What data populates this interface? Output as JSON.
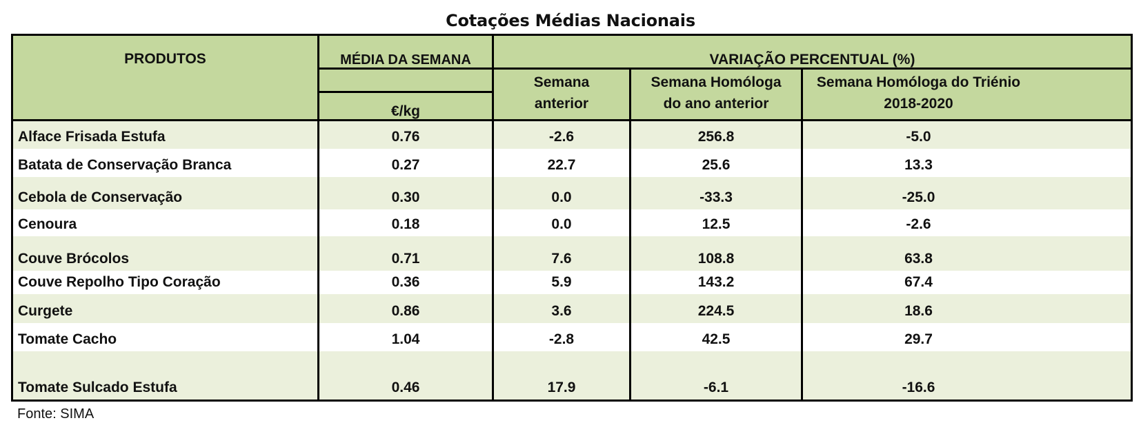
{
  "title": "Cotações Médias Nacionais",
  "header": {
    "produtos": "PRODUTOS",
    "media": "MÉDIA DA SEMANA",
    "unit": "€/kg",
    "variacao": "VARIAÇÃO PERCENTUAL (%)",
    "semana_anterior": [
      "Semana",
      "anterior"
    ],
    "homologa_ano": [
      "Semana Homóloga",
      "do ano anterior"
    ],
    "homologa_trienio": [
      "Semana Homóloga do Triénio",
      "2018-2020"
    ]
  },
  "rows": [
    {
      "produto": "Alface Frisada Estufa",
      "media": "0.76",
      "sem_ant": "-2.6",
      "hom_ano": "256.8",
      "hom_tri": "-5.0"
    },
    {
      "produto": "Batata de Conservação Branca",
      "media": "0.27",
      "sem_ant": "22.7",
      "hom_ano": "25.6",
      "hom_tri": "13.3"
    },
    {
      "produto": "Cebola de Conservação",
      "media": "0.30",
      "sem_ant": "0.0",
      "hom_ano": "-33.3",
      "hom_tri": "-25.0"
    },
    {
      "produto": "Cenoura",
      "media": "0.18",
      "sem_ant": "0.0",
      "hom_ano": "12.5",
      "hom_tri": "-2.6"
    },
    {
      "produto": "Couve Brócolos",
      "media": "0.71",
      "sem_ant": "7.6",
      "hom_ano": "108.8",
      "hom_tri": "63.8"
    },
    {
      "produto": "Couve Repolho Tipo Coração",
      "media": "0.36",
      "sem_ant": "5.9",
      "hom_ano": "143.2",
      "hom_tri": "67.4"
    },
    {
      "produto": "Curgete",
      "media": "0.86",
      "sem_ant": "3.6",
      "hom_ano": "224.5",
      "hom_tri": "18.6"
    },
    {
      "produto": "Tomate Cacho",
      "media": "1.04",
      "sem_ant": "-2.8",
      "hom_ano": "42.5",
      "hom_tri": "29.7"
    },
    {
      "produto": "Tomate Sulcado Estufa",
      "media": "0.46",
      "sem_ant": "17.9",
      "hom_ano": "-6.1",
      "hom_tri": "-16.6"
    }
  ],
  "source": "Fonte: SIMA",
  "colors": {
    "header_bg": "#c4d89e",
    "shaded_row_bg": "#ebf0dc",
    "border": "#000000"
  }
}
